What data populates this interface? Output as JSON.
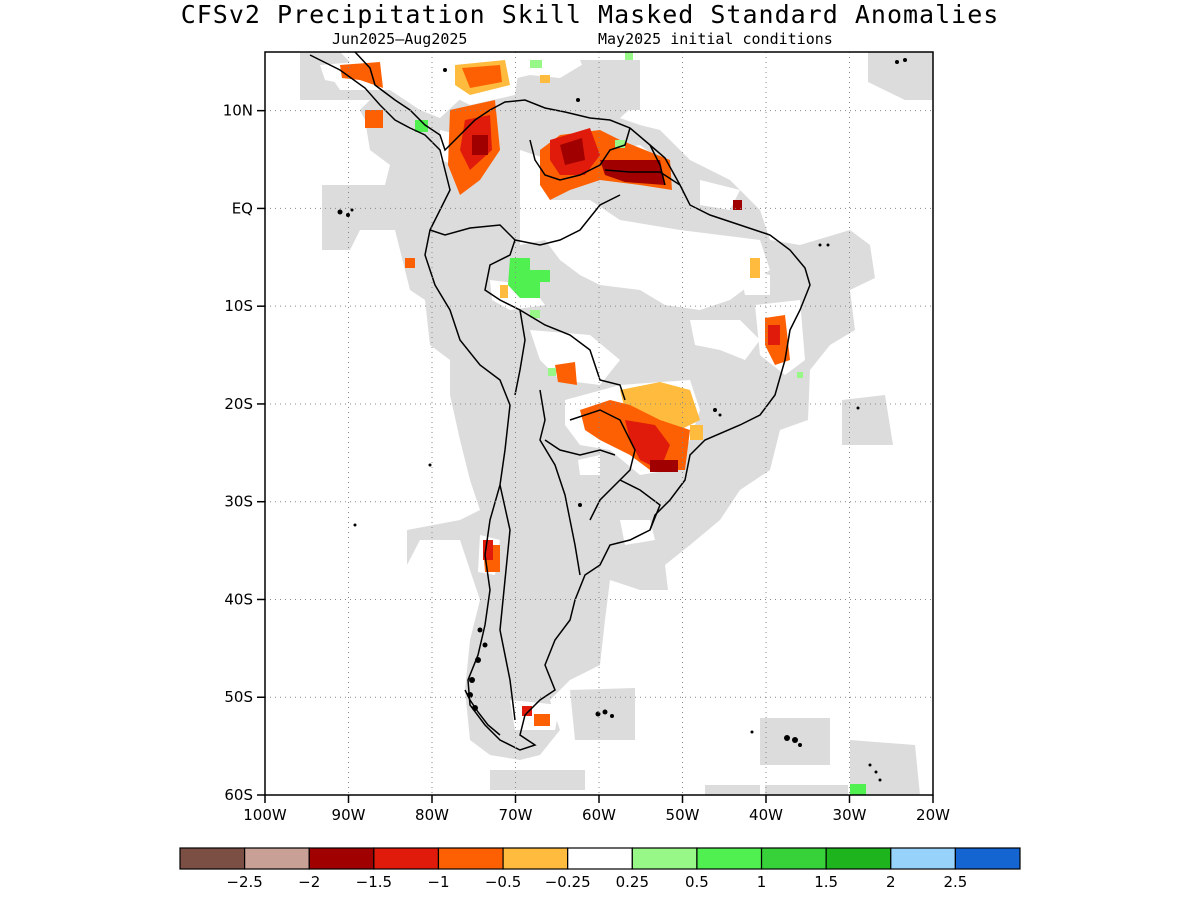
{
  "title": "CFSv2 Precipitation Skill Masked Standard Anomalies",
  "subtitle_period": "Jun2025–Aug2025",
  "subtitle_ic": "May2025 initial conditions",
  "map": {
    "lon_range": [
      -100,
      -20
    ],
    "lat_range": [
      -60,
      16
    ],
    "lat_ticks": [
      {
        "value": 10,
        "label": "10N"
      },
      {
        "value": 0,
        "label": "EQ"
      },
      {
        "value": -10,
        "label": "10S"
      },
      {
        "value": -20,
        "label": "20S"
      },
      {
        "value": -30,
        "label": "30S"
      },
      {
        "value": -40,
        "label": "40S"
      },
      {
        "value": -50,
        "label": "50S"
      },
      {
        "value": -60,
        "label": "60S"
      }
    ],
    "lon_ticks": [
      {
        "value": -100,
        "label": "100W"
      },
      {
        "value": -90,
        "label": "90W"
      },
      {
        "value": -80,
        "label": "80W"
      },
      {
        "value": -70,
        "label": "70W"
      },
      {
        "value": -60,
        "label": "60W"
      },
      {
        "value": -50,
        "label": "50W"
      },
      {
        "value": -40,
        "label": "40W"
      },
      {
        "value": -30,
        "label": "30W"
      },
      {
        "value": -20,
        "label": "20W"
      }
    ],
    "mask_color": "#dcdcdc",
    "gridlines": "dotted"
  },
  "colorbar": {
    "colors": [
      "#7b4f44",
      "#c8a096",
      "#a00000",
      "#e01b0b",
      "#fd6002",
      "#febb3d",
      "#ffffff",
      "#97f887",
      "#50f050",
      "#37d23a",
      "#1eb41e",
      "#96d2fa",
      "#1464d2"
    ],
    "labels": [
      "−2.5",
      "−2",
      "−1.5",
      "−1",
      "−0.5",
      "−0.25",
      "0.25",
      "0.5",
      "1",
      "1.5",
      "2",
      "2.5"
    ]
  }
}
